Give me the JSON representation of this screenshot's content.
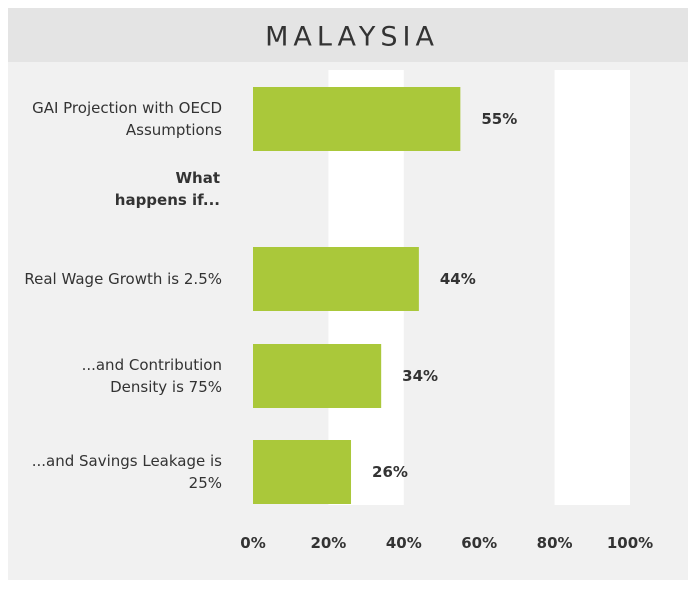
{
  "chart_data": {
    "type": "bar",
    "orientation": "horizontal",
    "title": "MALAYSIA",
    "categories": [
      "GAI Projection with OECD Assumptions",
      "What happens if...",
      "Real Wage Growth is 2.5%",
      "...and Contribution Density is 75%",
      "...and Savings Leakage is 25%"
    ],
    "values": [
      55,
      null,
      44,
      34,
      26
    ],
    "value_labels": [
      "55%",
      null,
      "44%",
      "34%",
      "26%"
    ],
    "color": "#aac83a",
    "xlim": [
      0,
      100
    ],
    "xticks": [
      {
        "value": 0,
        "label": "0%"
      },
      {
        "value": 20,
        "label": "20%"
      },
      {
        "value": 40,
        "label": "40%"
      },
      {
        "value": 60,
        "label": "60%"
      },
      {
        "value": 80,
        "label": "80%"
      },
      {
        "value": 100,
        "label": "100%"
      }
    ]
  }
}
